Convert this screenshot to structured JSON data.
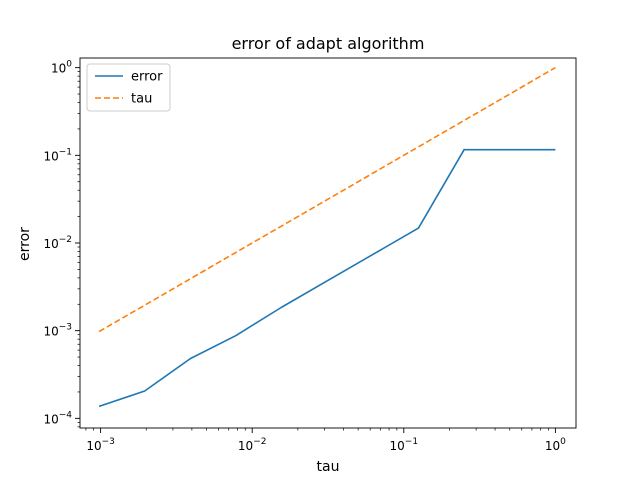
{
  "chart_data": {
    "type": "line",
    "title": "error of adapt algorithm",
    "xlabel": "tau",
    "ylabel": "error",
    "xscale": "log",
    "yscale": "log",
    "xlim": [
      0.001,
      1
    ],
    "ylim": [
      0.0001,
      1
    ],
    "grid": false,
    "legend_position": "top-left",
    "x_ticks": [
      {
        "value": 0.001,
        "base": "10",
        "exp": "−3"
      },
      {
        "value": 0.01,
        "base": "10",
        "exp": "−2"
      },
      {
        "value": 0.1,
        "base": "10",
        "exp": "−1"
      },
      {
        "value": 1,
        "base": "10",
        "exp": "0"
      }
    ],
    "y_ticks": [
      {
        "value": 0.0001,
        "base": "10",
        "exp": "−4"
      },
      {
        "value": 0.001,
        "base": "10",
        "exp": "−3"
      },
      {
        "value": 0.01,
        "base": "10",
        "exp": "−2"
      },
      {
        "value": 0.1,
        "base": "10",
        "exp": "−1"
      },
      {
        "value": 1,
        "base": "10",
        "exp": "0"
      }
    ],
    "series": [
      {
        "name": "error",
        "color": "#1f77b4",
        "linestyle": "solid",
        "x": [
          0.0009765625,
          0.001953125,
          0.00390625,
          0.0078125,
          0.015625,
          0.03125,
          0.0625,
          0.125,
          0.25,
          0.5,
          1.0
        ],
        "y": [
          0.000137,
          0.000205,
          0.00048,
          0.00088,
          0.00185,
          0.0037,
          0.0074,
          0.0148,
          0.116,
          0.116,
          0.116
        ]
      },
      {
        "name": "tau",
        "color": "#ff7f0e",
        "linestyle": "dashed",
        "x": [
          0.0009765625,
          0.001953125,
          0.00390625,
          0.0078125,
          0.015625,
          0.03125,
          0.0625,
          0.125,
          0.25,
          0.5,
          1.0
        ],
        "y": [
          0.0009765625,
          0.001953125,
          0.00390625,
          0.0078125,
          0.015625,
          0.03125,
          0.0625,
          0.125,
          0.25,
          0.5,
          1.0
        ]
      }
    ]
  }
}
